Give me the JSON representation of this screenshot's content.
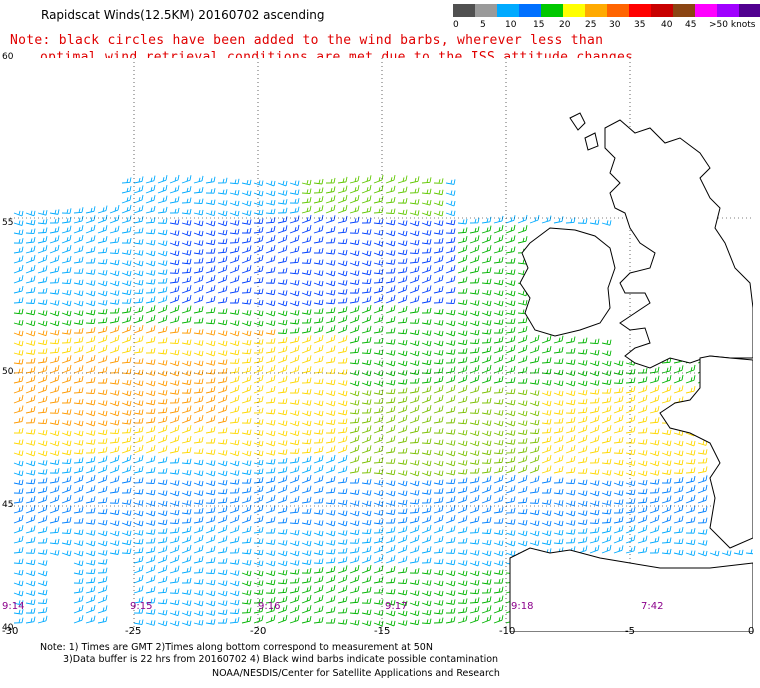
{
  "title": "Rapidscat Winds(12.5KM) 20160702 ascending",
  "note_line1": "Note: black circles have been added to the wind barbs, wherever less than",
  "note_line2": "optimal wind retrieval conditions are met due to the ISS attitude changes.",
  "colorbar": {
    "colors": [
      "#505050",
      "#9a9a9a",
      "#00aaff",
      "#0070ff",
      "#00c800",
      "#ffff00",
      "#ffaa00",
      "#ff6400",
      "#ff0000",
      "#c80000",
      "#8b4513",
      "#ff00ff",
      "#a000ff",
      "#500090"
    ],
    "labels": [
      "0",
      "5",
      "10",
      "15",
      "20",
      "25",
      "30",
      "35",
      "40",
      "45",
      ">50 knots"
    ]
  },
  "lon_labels": [
    "-30",
    "-25",
    "-20",
    "-15",
    "-10",
    "-5",
    "0"
  ],
  "lat_labels": [
    "60",
    "55",
    "50",
    "45",
    "40"
  ],
  "time_labels": [
    "9:14",
    "9:15",
    "9:16",
    "9:17",
    "9:18",
    "7:42"
  ],
  "footer": {
    "line1": "Note: 1) Times are GMT 2)Times along bottom correspond to measurement at 50N",
    "line2": "3)Data buffer is 22 hrs from 20160702 4) Black wind barbs indicate possible contamination",
    "line3": "NOAA/NESDIS/Center for Satellite Applications and Research"
  }
}
